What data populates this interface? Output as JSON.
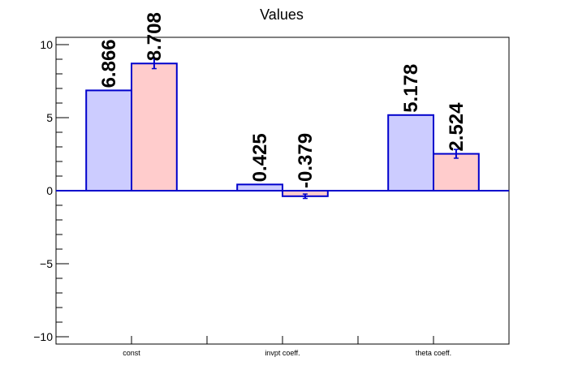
{
  "chart_data": {
    "type": "bar",
    "title": "Values",
    "categories": [
      "const",
      "invpt coeff.",
      "theta coeff."
    ],
    "series": [
      {
        "values": [
          6.866,
          0.425,
          5.178
        ],
        "color": "#ccccff",
        "labels": [
          "6.866",
          "0.425",
          "5.178"
        ]
      },
      {
        "values": [
          8.708,
          -0.379,
          2.524
        ],
        "color": "#ffcccc",
        "labels": [
          "8.708",
          "-0.379",
          "2.524"
        ]
      }
    ],
    "errors": [
      [
        0,
        0,
        0
      ],
      [
        0.35,
        0.15,
        0.3
      ]
    ],
    "ylim": [
      -10.5,
      10.5
    ],
    "yticks": [
      -10,
      -5,
      0,
      5,
      10
    ],
    "ytick_labels": [
      "−10",
      "−5",
      "0",
      "5",
      "10"
    ],
    "outline_color": "#0000cc",
    "grid": false
  }
}
